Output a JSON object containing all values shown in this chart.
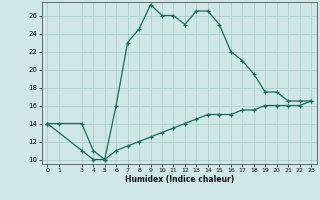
{
  "xlabel": "Humidex (Indice chaleur)",
  "background_color": "#cfe8e5",
  "grid_color": "#aacfcc",
  "line_color": "#1a6b5a",
  "xlim": [
    -0.5,
    23.5
  ],
  "ylim": [
    9.5,
    27.5
  ],
  "xticks": [
    0,
    1,
    3,
    4,
    5,
    6,
    7,
    8,
    9,
    10,
    11,
    12,
    13,
    14,
    15,
    16,
    17,
    18,
    19,
    20,
    21,
    22,
    23
  ],
  "yticks": [
    10,
    12,
    14,
    16,
    18,
    20,
    22,
    24,
    26
  ],
  "line1_x": [
    0,
    1,
    3,
    4,
    5,
    6,
    7,
    8,
    9,
    10,
    11,
    12,
    13,
    14,
    15,
    16,
    17,
    18,
    19,
    20,
    21,
    22,
    23
  ],
  "line1_y": [
    14,
    14,
    14,
    11,
    10,
    16,
    23,
    24.5,
    27.2,
    26,
    26,
    25,
    26.5,
    26.5,
    25,
    22,
    21,
    19.5,
    17.5,
    17.5,
    16.5,
    16.5,
    16.5
  ],
  "line2_x": [
    0,
    3,
    4,
    5,
    6,
    7,
    8,
    9,
    10,
    11,
    12,
    13,
    14,
    15,
    16,
    17,
    18,
    19,
    20,
    21,
    22,
    23
  ],
  "line2_y": [
    14,
    11,
    10,
    10,
    11,
    11.5,
    12,
    12.5,
    13,
    13.5,
    14,
    14.5,
    15,
    15,
    15,
    15.5,
    15.5,
    16,
    16,
    16,
    16,
    16.5
  ]
}
